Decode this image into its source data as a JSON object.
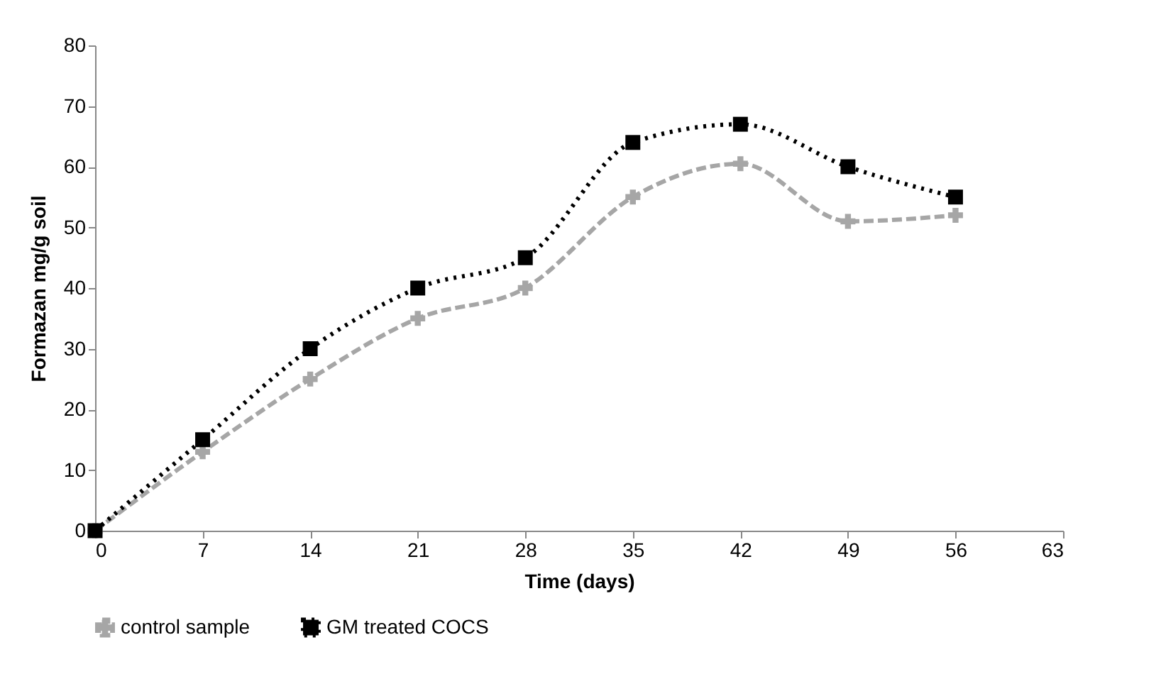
{
  "chart_data": {
    "type": "line",
    "xlabel": "Time (days)",
    "ylabel": "Formazan mg/g soil",
    "x": [
      0,
      7,
      14,
      21,
      28,
      35,
      42,
      49,
      56
    ],
    "series": [
      {
        "name": "control sample",
        "color": "#a6a6a6",
        "marker": "cross",
        "line_style": "dashed",
        "values": [
          0,
          13,
          25,
          35,
          40,
          55,
          60.5,
          51,
          52
        ]
      },
      {
        "name": "GM treated COCS",
        "color": "#000000",
        "marker": "square",
        "line_style": "dotted",
        "values": [
          0,
          15,
          30,
          40,
          45,
          64,
          67,
          60,
          55
        ]
      }
    ],
    "xlim": [
      0,
      63
    ],
    "xticks": [
      0,
      7,
      14,
      21,
      28,
      35,
      42,
      49,
      56,
      63
    ],
    "ylim": [
      0,
      80
    ],
    "yticks": [
      0,
      10,
      20,
      30,
      40,
      50,
      60,
      70,
      80
    ],
    "grid": false,
    "legend": "bottom"
  }
}
